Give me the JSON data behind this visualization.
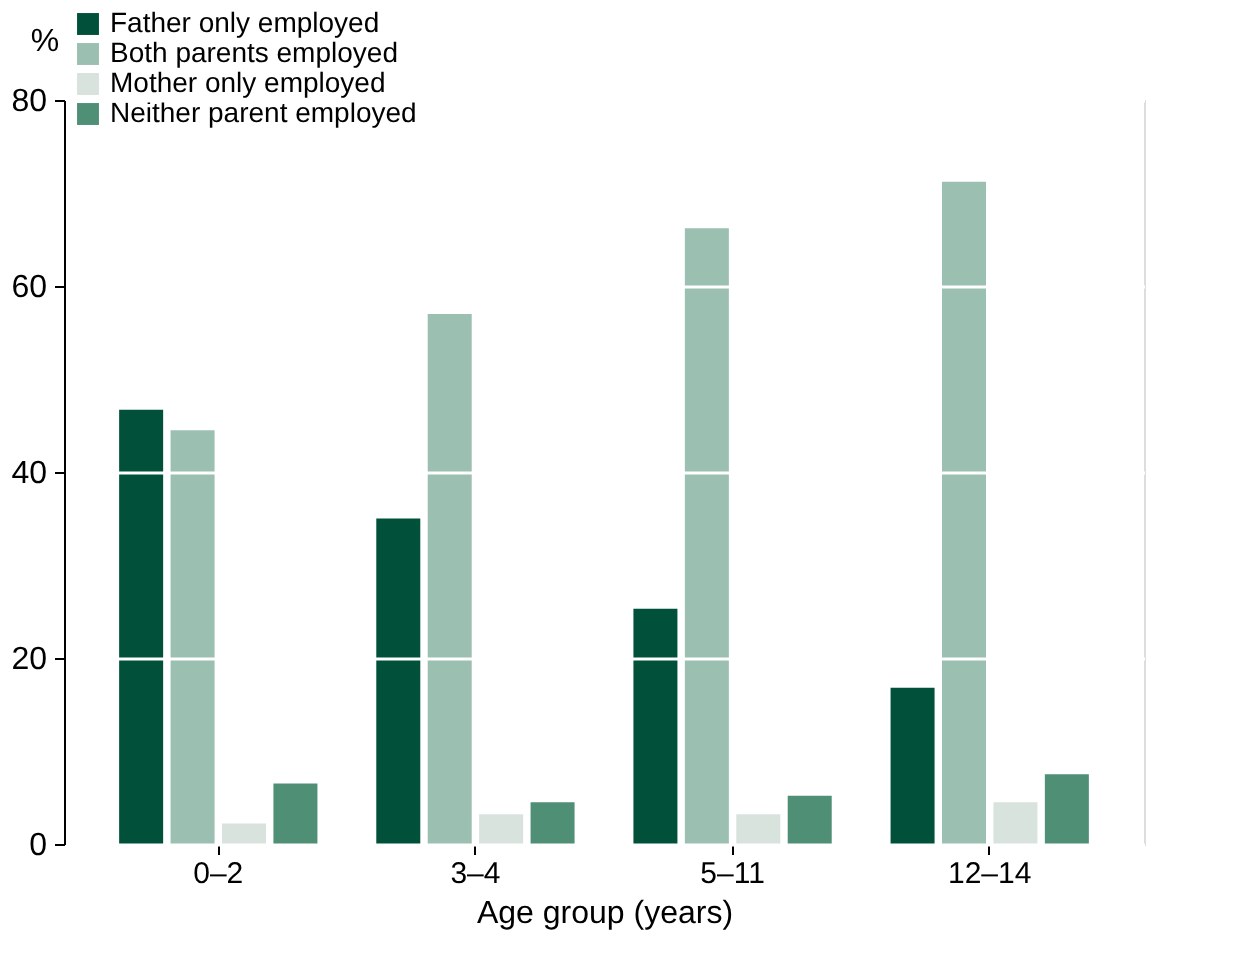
{
  "chart_data": {
    "type": "bar",
    "xlabel": "Age group (years)",
    "ylabel": "%",
    "categories": [
      "0–2",
      "3–4",
      "5–11",
      "12–14"
    ],
    "series": [
      {
        "name": "Father only employed",
        "color": "#00503a",
        "values": [
          46.7,
          35,
          25.3,
          16.8
        ]
      },
      {
        "name": "Both parents employed",
        "color": "#9bbfb0",
        "values": [
          44.5,
          57,
          66.2,
          71.2
        ]
      },
      {
        "name": "Mother only employed",
        "color": "#d8e3de",
        "values": [
          2.2,
          3.2,
          3.2,
          4.5
        ]
      },
      {
        "name": "Neither parent employed",
        "color": "#4f8f76",
        "values": [
          6.5,
          4.5,
          5.2,
          7.5
        ]
      }
    ],
    "ylim": [
      0,
      80
    ],
    "yticks": [
      0,
      20,
      40,
      60,
      80
    ],
    "grid": "y",
    "legend": "top left"
  }
}
